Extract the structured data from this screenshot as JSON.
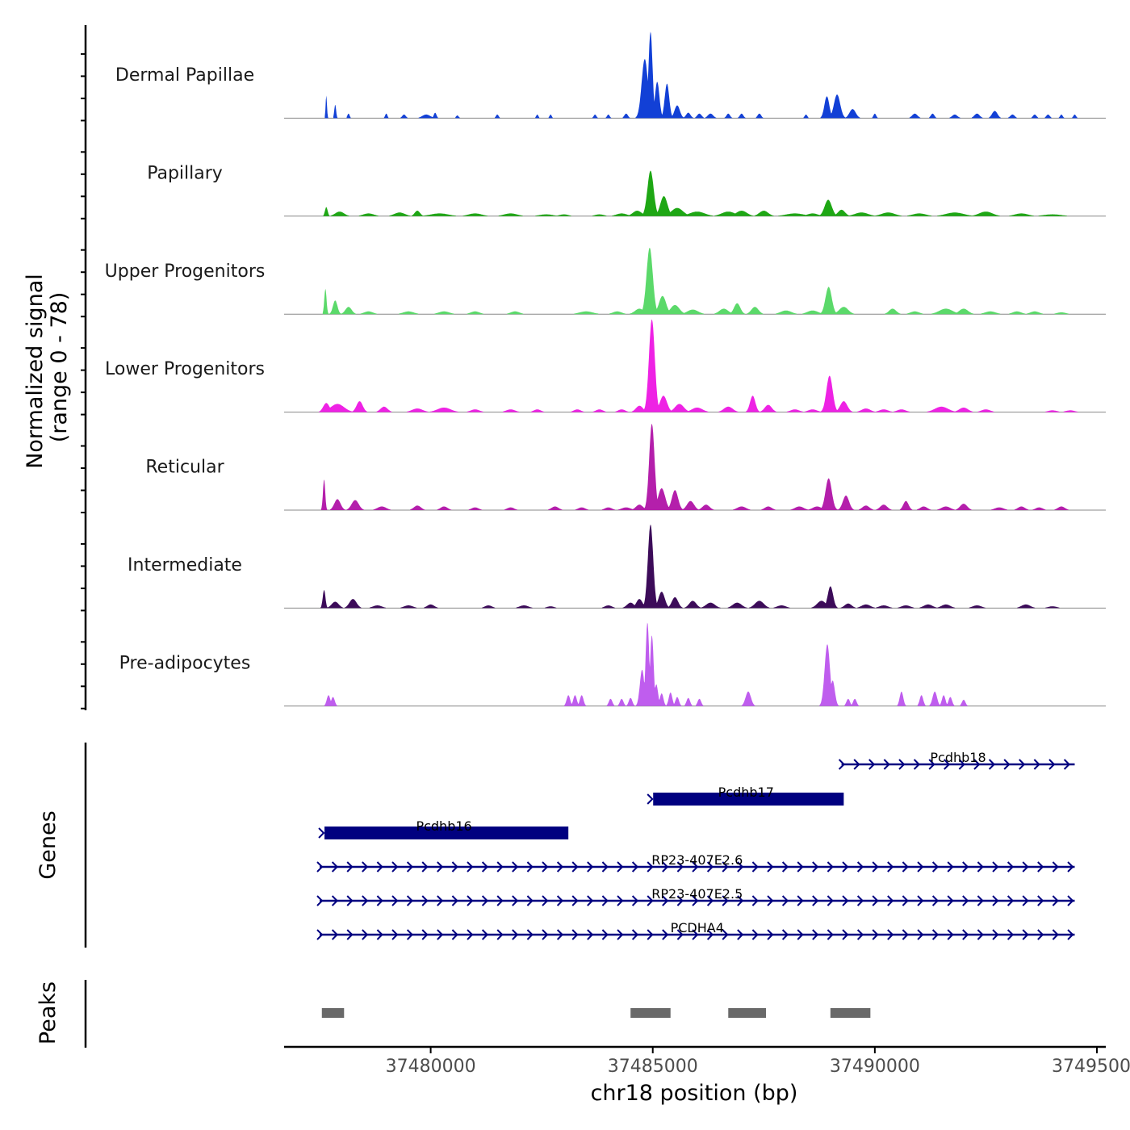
{
  "chart_data": {
    "type": "area",
    "title": "",
    "ylabel_lines": [
      "Normalized signal",
      "(range 0 - 78)"
    ],
    "ylim": [
      0,
      78
    ],
    "xlabel": "chr18 position (bp)",
    "xlim": [
      37476700,
      37495200
    ],
    "x_ticks": [
      37480000,
      37485000,
      37490000,
      37495000
    ],
    "x_tick_labels": [
      "37480000",
      "37485000",
      "37490000",
      "37495000"
    ],
    "tracks": [
      {
        "name": "Dermal Papillae",
        "color": "#1240d6",
        "peaks": [
          [
            37477650,
            25,
            15
          ],
          [
            37477850,
            15,
            20
          ],
          [
            37478150,
            5,
            25
          ],
          [
            37479000,
            5,
            25
          ],
          [
            37479400,
            4,
            40
          ],
          [
            37479900,
            4,
            90
          ],
          [
            37480100,
            6,
            30
          ],
          [
            37480600,
            3,
            30
          ],
          [
            37481500,
            4,
            30
          ],
          [
            37482400,
            4,
            25
          ],
          [
            37482700,
            4,
            25
          ],
          [
            37483700,
            4,
            30
          ],
          [
            37484000,
            4,
            30
          ],
          [
            37484400,
            5,
            40
          ],
          [
            37484820,
            65,
            70
          ],
          [
            37484950,
            95,
            45
          ],
          [
            37485100,
            40,
            50
          ],
          [
            37485320,
            38,
            50
          ],
          [
            37485550,
            14,
            60
          ],
          [
            37485800,
            6,
            50
          ],
          [
            37486050,
            5,
            50
          ],
          [
            37486300,
            5,
            60
          ],
          [
            37486700,
            5,
            40
          ],
          [
            37487000,
            5,
            40
          ],
          [
            37487400,
            5,
            40
          ],
          [
            37488450,
            4,
            30
          ],
          [
            37488920,
            24,
            55
          ],
          [
            37489150,
            26,
            70
          ],
          [
            37489500,
            10,
            70
          ],
          [
            37490000,
            5,
            30
          ],
          [
            37490900,
            5,
            60
          ],
          [
            37491300,
            5,
            40
          ],
          [
            37491800,
            4,
            60
          ],
          [
            37492300,
            5,
            60
          ],
          [
            37492700,
            8,
            60
          ],
          [
            37493100,
            4,
            50
          ],
          [
            37493600,
            4,
            40
          ],
          [
            37493900,
            4,
            40
          ],
          [
            37494200,
            4,
            30
          ],
          [
            37494500,
            4,
            30
          ]
        ]
      },
      {
        "name": "Papillary",
        "color": "#1ea714",
        "peaks": [
          [
            37477650,
            10,
            30
          ],
          [
            37477950,
            5,
            100
          ],
          [
            37478600,
            3,
            120
          ],
          [
            37479300,
            4,
            120
          ],
          [
            37479700,
            6,
            60
          ],
          [
            37480200,
            3,
            200
          ],
          [
            37481000,
            3,
            150
          ],
          [
            37481800,
            3,
            150
          ],
          [
            37482600,
            2,
            150
          ],
          [
            37483000,
            2,
            100
          ],
          [
            37483800,
            2,
            100
          ],
          [
            37484300,
            3,
            120
          ],
          [
            37484650,
            6,
            100
          ],
          [
            37484950,
            50,
            70
          ],
          [
            37485250,
            22,
            80
          ],
          [
            37485550,
            9,
            130
          ],
          [
            37486000,
            5,
            170
          ],
          [
            37486700,
            5,
            150
          ],
          [
            37487000,
            6,
            120
          ],
          [
            37487500,
            6,
            100
          ],
          [
            37488200,
            3,
            200
          ],
          [
            37488600,
            3,
            120
          ],
          [
            37488950,
            18,
            80
          ],
          [
            37489250,
            7,
            80
          ],
          [
            37489700,
            4,
            150
          ],
          [
            37490300,
            4,
            150
          ],
          [
            37491000,
            3,
            150
          ],
          [
            37491800,
            4,
            200
          ],
          [
            37492500,
            5,
            150
          ],
          [
            37493300,
            3,
            150
          ],
          [
            37494000,
            2,
            200
          ]
        ]
      },
      {
        "name": "Upper Progenitors",
        "color": "#5bd96a",
        "peaks": [
          [
            37477630,
            28,
            25
          ],
          [
            37477850,
            15,
            50
          ],
          [
            37478150,
            8,
            70
          ],
          [
            37478600,
            3,
            100
          ],
          [
            37479500,
            3,
            120
          ],
          [
            37480300,
            3,
            120
          ],
          [
            37481000,
            3,
            100
          ],
          [
            37481900,
            3,
            100
          ],
          [
            37483500,
            3,
            150
          ],
          [
            37484200,
            3,
            100
          ],
          [
            37484700,
            6,
            100
          ],
          [
            37484930,
            73,
            70
          ],
          [
            37485220,
            20,
            80
          ],
          [
            37485500,
            10,
            100
          ],
          [
            37485900,
            5,
            120
          ],
          [
            37486600,
            6,
            100
          ],
          [
            37486900,
            12,
            70
          ],
          [
            37487300,
            8,
            80
          ],
          [
            37488000,
            4,
            120
          ],
          [
            37488600,
            4,
            120
          ],
          [
            37488960,
            30,
            70
          ],
          [
            37489300,
            8,
            100
          ],
          [
            37490400,
            6,
            80
          ],
          [
            37490900,
            3,
            100
          ],
          [
            37491600,
            6,
            150
          ],
          [
            37492000,
            6,
            100
          ],
          [
            37492600,
            3,
            120
          ],
          [
            37493200,
            3,
            100
          ],
          [
            37493600,
            3,
            100
          ],
          [
            37494200,
            2,
            100
          ]
        ]
      },
      {
        "name": "Lower Progenitors",
        "color": "#ee22e4",
        "peaks": [
          [
            37477650,
            10,
            70
          ],
          [
            37477900,
            9,
            150
          ],
          [
            37478400,
            12,
            70
          ],
          [
            37478950,
            6,
            80
          ],
          [
            37479700,
            4,
            120
          ],
          [
            37480300,
            5,
            150
          ],
          [
            37481000,
            3,
            100
          ],
          [
            37481800,
            3,
            100
          ],
          [
            37482400,
            3,
            80
          ],
          [
            37483300,
            3,
            80
          ],
          [
            37483800,
            3,
            80
          ],
          [
            37484300,
            3,
            80
          ],
          [
            37484700,
            7,
            80
          ],
          [
            37484980,
            102,
            65
          ],
          [
            37485240,
            18,
            80
          ],
          [
            37485600,
            9,
            100
          ],
          [
            37486000,
            5,
            120
          ],
          [
            37486700,
            6,
            100
          ],
          [
            37487250,
            18,
            60
          ],
          [
            37487600,
            8,
            80
          ],
          [
            37488200,
            3,
            100
          ],
          [
            37488600,
            3,
            100
          ],
          [
            37488980,
            40,
            70
          ],
          [
            37489300,
            12,
            80
          ],
          [
            37489800,
            4,
            100
          ],
          [
            37490200,
            3,
            100
          ],
          [
            37490600,
            3,
            100
          ],
          [
            37491500,
            6,
            150
          ],
          [
            37492000,
            5,
            100
          ],
          [
            37492500,
            3,
            100
          ],
          [
            37494000,
            2,
            100
          ],
          [
            37494400,
            2,
            100
          ]
        ]
      },
      {
        "name": "Reticular",
        "color": "#b41fab",
        "peaks": [
          [
            37477600,
            34,
            25
          ],
          [
            37477900,
            12,
            70
          ],
          [
            37478300,
            11,
            80
          ],
          [
            37478900,
            4,
            100
          ],
          [
            37479700,
            5,
            80
          ],
          [
            37480300,
            4,
            80
          ],
          [
            37481000,
            3,
            80
          ],
          [
            37481800,
            3,
            80
          ],
          [
            37482800,
            4,
            80
          ],
          [
            37483400,
            3,
            80
          ],
          [
            37484000,
            3,
            80
          ],
          [
            37484400,
            3,
            100
          ],
          [
            37484700,
            6,
            80
          ],
          [
            37484980,
            95,
            60
          ],
          [
            37485200,
            24,
            80
          ],
          [
            37485500,
            22,
            70
          ],
          [
            37485850,
            10,
            80
          ],
          [
            37486200,
            6,
            80
          ],
          [
            37487000,
            4,
            100
          ],
          [
            37487600,
            4,
            80
          ],
          [
            37488300,
            4,
            100
          ],
          [
            37488700,
            4,
            100
          ],
          [
            37488960,
            35,
            70
          ],
          [
            37489350,
            16,
            70
          ],
          [
            37489800,
            5,
            80
          ],
          [
            37490200,
            6,
            80
          ],
          [
            37490700,
            10,
            60
          ],
          [
            37491100,
            4,
            80
          ],
          [
            37491600,
            4,
            100
          ],
          [
            37492000,
            7,
            80
          ],
          [
            37492800,
            3,
            100
          ],
          [
            37493300,
            4,
            80
          ],
          [
            37493700,
            3,
            80
          ],
          [
            37494200,
            4,
            80
          ]
        ]
      },
      {
        "name": "Intermediate",
        "color": "#3c0b59",
        "peaks": [
          [
            37477600,
            20,
            30
          ],
          [
            37477850,
            7,
            80
          ],
          [
            37478250,
            10,
            80
          ],
          [
            37478800,
            3,
            100
          ],
          [
            37479500,
            3,
            100
          ],
          [
            37480000,
            4,
            80
          ],
          [
            37481300,
            3,
            80
          ],
          [
            37482100,
            3,
            100
          ],
          [
            37482700,
            2,
            80
          ],
          [
            37484000,
            3,
            80
          ],
          [
            37484500,
            6,
            80
          ],
          [
            37484700,
            10,
            70
          ],
          [
            37484950,
            92,
            60
          ],
          [
            37485200,
            18,
            70
          ],
          [
            37485500,
            12,
            70
          ],
          [
            37485900,
            8,
            80
          ],
          [
            37486300,
            6,
            100
          ],
          [
            37486900,
            6,
            100
          ],
          [
            37487400,
            8,
            100
          ],
          [
            37487900,
            3,
            100
          ],
          [
            37488800,
            8,
            100
          ],
          [
            37489000,
            24,
            60
          ],
          [
            37489400,
            5,
            80
          ],
          [
            37489800,
            4,
            100
          ],
          [
            37490200,
            3,
            100
          ],
          [
            37490700,
            3,
            100
          ],
          [
            37491200,
            4,
            100
          ],
          [
            37491600,
            4,
            100
          ],
          [
            37492300,
            3,
            100
          ],
          [
            37493400,
            4,
            100
          ],
          [
            37494000,
            2,
            100
          ]
        ]
      },
      {
        "name": "Pre-adipocytes",
        "color": "#bf5dee",
        "peaks": [
          [
            37477700,
            12,
            40
          ],
          [
            37477800,
            10,
            40
          ],
          [
            37483100,
            12,
            40
          ],
          [
            37483250,
            12,
            40
          ],
          [
            37483400,
            12,
            40
          ],
          [
            37484050,
            8,
            40
          ],
          [
            37484300,
            8,
            40
          ],
          [
            37484500,
            9,
            40
          ],
          [
            37484760,
            40,
            50
          ],
          [
            37484880,
            92,
            40
          ],
          [
            37484980,
            78,
            40
          ],
          [
            37485080,
            24,
            40
          ],
          [
            37485200,
            14,
            40
          ],
          [
            37485400,
            15,
            40
          ],
          [
            37485550,
            10,
            40
          ],
          [
            37485800,
            9,
            40
          ],
          [
            37486050,
            8,
            40
          ],
          [
            37487150,
            16,
            60
          ],
          [
            37488930,
            68,
            60
          ],
          [
            37489050,
            28,
            50
          ],
          [
            37489400,
            8,
            40
          ],
          [
            37489550,
            8,
            40
          ],
          [
            37490600,
            16,
            40
          ],
          [
            37491050,
            12,
            40
          ],
          [
            37491350,
            16,
            50
          ],
          [
            37491550,
            12,
            40
          ],
          [
            37491700,
            10,
            40
          ],
          [
            37492000,
            7,
            40
          ]
        ]
      }
    ],
    "genes": [
      {
        "name": "Pcdhb18",
        "start": 37489250,
        "end": 37494500,
        "type": "intron",
        "row": 0
      },
      {
        "name": "Pcdhb17",
        "start": 37484900,
        "end": 37489300,
        "type": "exon",
        "row": 1
      },
      {
        "name": "Pcdhb16",
        "start": 37477500,
        "end": 37483100,
        "type": "exon",
        "row": 2
      },
      {
        "name": "RP23-407E2.6",
        "start": 37477500,
        "end": 37494500,
        "type": "intron",
        "row": 3
      },
      {
        "name": "RP23-407E2.5",
        "start": 37477500,
        "end": 37494500,
        "type": "intron",
        "row": 4
      },
      {
        "name": "PCDHA4",
        "start": 37477500,
        "end": 37494500,
        "type": "intron",
        "row": 5
      }
    ],
    "genes_label": "Genes",
    "peaks_label": "Peaks",
    "peak_regions": [
      [
        37477550,
        37478050
      ],
      [
        37484500,
        37485400
      ],
      [
        37486700,
        37487550
      ],
      [
        37489000,
        37489900
      ]
    ],
    "gene_color": "#000080",
    "peak_region_color": "#696969"
  }
}
